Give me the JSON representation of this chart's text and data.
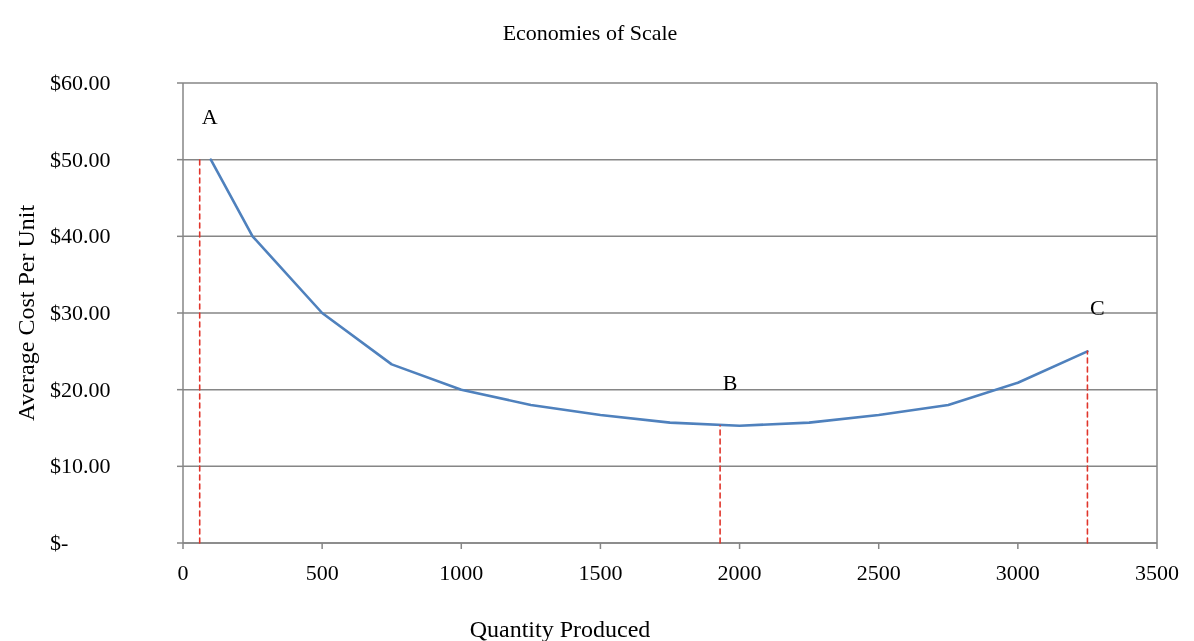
{
  "chart_data": {
    "type": "line",
    "title": "Economies of Scale",
    "xlabel": "Quantity Produced",
    "ylabel": "Average Cost Per Unit",
    "xlim": [
      0,
      3500
    ],
    "xticks": [
      0,
      500,
      1000,
      1500,
      2000,
      2500,
      3000,
      3500
    ],
    "ylim": [
      0,
      60
    ],
    "yticks": [
      {
        "value": 0,
        "label": "$-"
      },
      {
        "value": 10,
        "label": "$10.00"
      },
      {
        "value": 20,
        "label": "$20.00"
      },
      {
        "value": 30,
        "label": "$30.00"
      },
      {
        "value": 40,
        "label": "$40.00"
      },
      {
        "value": 50,
        "label": "$50.00"
      },
      {
        "value": 60,
        "label": "$60.00"
      }
    ],
    "grid": "y",
    "marker": "none",
    "series": [
      {
        "color": "#4f81bd",
        "line_style": "solid",
        "x": [
          100,
          250,
          500,
          750,
          1000,
          1250,
          1500,
          1750,
          2000,
          2250,
          2500,
          2750,
          3000,
          3250
        ],
        "values": [
          50,
          40,
          30,
          23.3,
          20,
          18,
          16.7,
          15.7,
          15.3,
          15.7,
          16.7,
          18,
          20.9,
          25
        ]
      },
      {
        "color": "#e0352b",
        "line_style": "dashed",
        "x": [
          60,
          60
        ],
        "values": [
          0,
          50
        ]
      },
      {
        "color": "#e0352b",
        "line_style": "dashed",
        "x": [
          1930,
          1930
        ],
        "values": [
          0,
          15.3
        ]
      },
      {
        "color": "#e0352b",
        "line_style": "dashed",
        "x": [
          3250,
          3250
        ],
        "values": [
          0,
          25
        ]
      }
    ],
    "annotations": [
      "A",
      "B",
      "C"
    ]
  }
}
